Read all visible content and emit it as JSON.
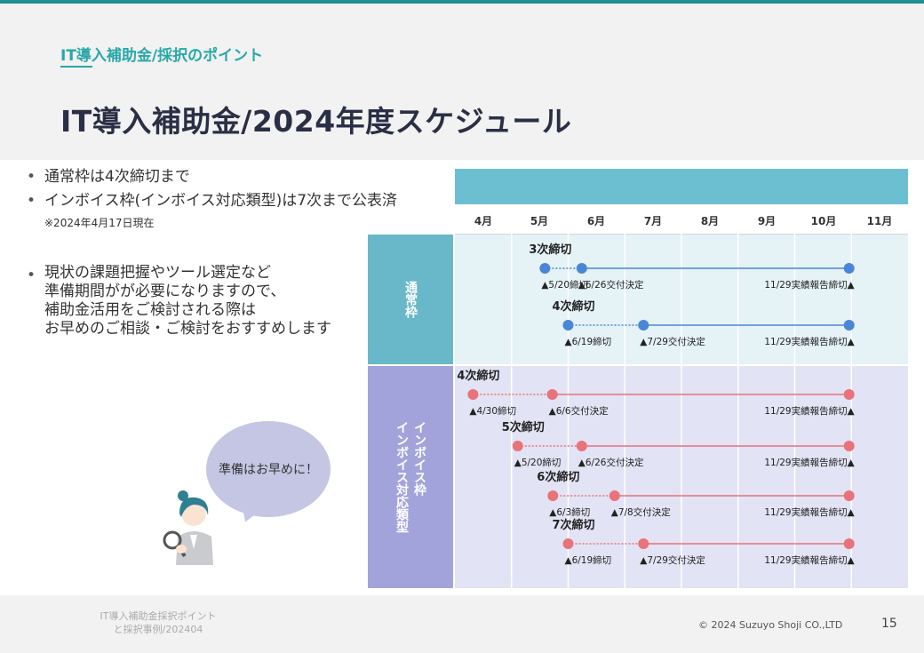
{
  "header": {
    "subtitle": "IT導入補助金/採択のポイント",
    "title": "IT導入補助金/2024年度スケジュール"
  },
  "bullets": {
    "b1": "通常枠は4次締切まで",
    "b2": "インボイス枠(インボイス対応類型)は7次まで公表済",
    "note": "※2024年4月17日現在",
    "b3_lines": [
      "現状の課題把握やツール選定など",
      "準備期間がが必要になりますので、",
      "補助金活用をご検討される際は",
      "お早めのご相談・ご検討をおすすめします"
    ]
  },
  "bubble": {
    "text": "準備はお早めに！"
  },
  "colors": {
    "teal": "#2aa7a7",
    "blue": "#4a86d6",
    "red": "#e8737a",
    "navy": "#2b2f45"
  },
  "chart_data": {
    "type": "timeline",
    "months": [
      "4月",
      "5月",
      "6月",
      "7月",
      "8月",
      "9月",
      "10月",
      "11月"
    ],
    "groups": [
      {
        "label": "通常枠",
        "color": "#4a86d6",
        "rounds": [
          {
            "title": "3次締切",
            "deadline": "▲5/20締切",
            "decision": "▲6/26交付決定",
            "report": "11/29実績報告締切▲",
            "deadline_pos": 1.59,
            "decision_pos": 2.24,
            "report_pos": 6.96
          },
          {
            "title": "4次締切",
            "deadline": "▲6/19締切",
            "decision": "▲7/29交付決定",
            "report": "11/29実績報告締切▲",
            "deadline_pos": 2.0,
            "decision_pos": 3.33,
            "report_pos": 6.96
          }
        ]
      },
      {
        "label": "インボイス枠\nインボイス対応類型",
        "color": "#e8737a",
        "rounds": [
          {
            "title": "4次締切",
            "deadline": "▲4/30締切",
            "decision": "▲6/6交付決定",
            "report": "11/29実績報告締切▲",
            "deadline_pos": 0.32,
            "decision_pos": 1.72,
            "report_pos": 6.96
          },
          {
            "title": "5次締切",
            "deadline": "▲5/20締切",
            "decision": "▲6/26交付決定",
            "report": "11/29実績報告締切▲",
            "deadline_pos": 1.11,
            "decision_pos": 2.24,
            "report_pos": 6.96
          },
          {
            "title": "6次締切",
            "deadline": "▲6/3締切",
            "decision": "▲7/8交付決定",
            "report": "11/29実績報告締切▲",
            "deadline_pos": 1.73,
            "decision_pos": 2.82,
            "report_pos": 6.96
          },
          {
            "title": "7次締切",
            "deadline": "▲6/19締切",
            "decision": "▲7/29交付決定",
            "report": "11/29実績報告締切▲",
            "deadline_pos": 2.0,
            "decision_pos": 3.33,
            "report_pos": 6.96
          }
        ]
      }
    ]
  },
  "footer": {
    "left_line1": "IT導入補助金採択ポイント",
    "left_line2": "と採択事例/202404",
    "copyright": "© 2024 Suzuyo Shoji CO.,LTD",
    "page": "15"
  }
}
